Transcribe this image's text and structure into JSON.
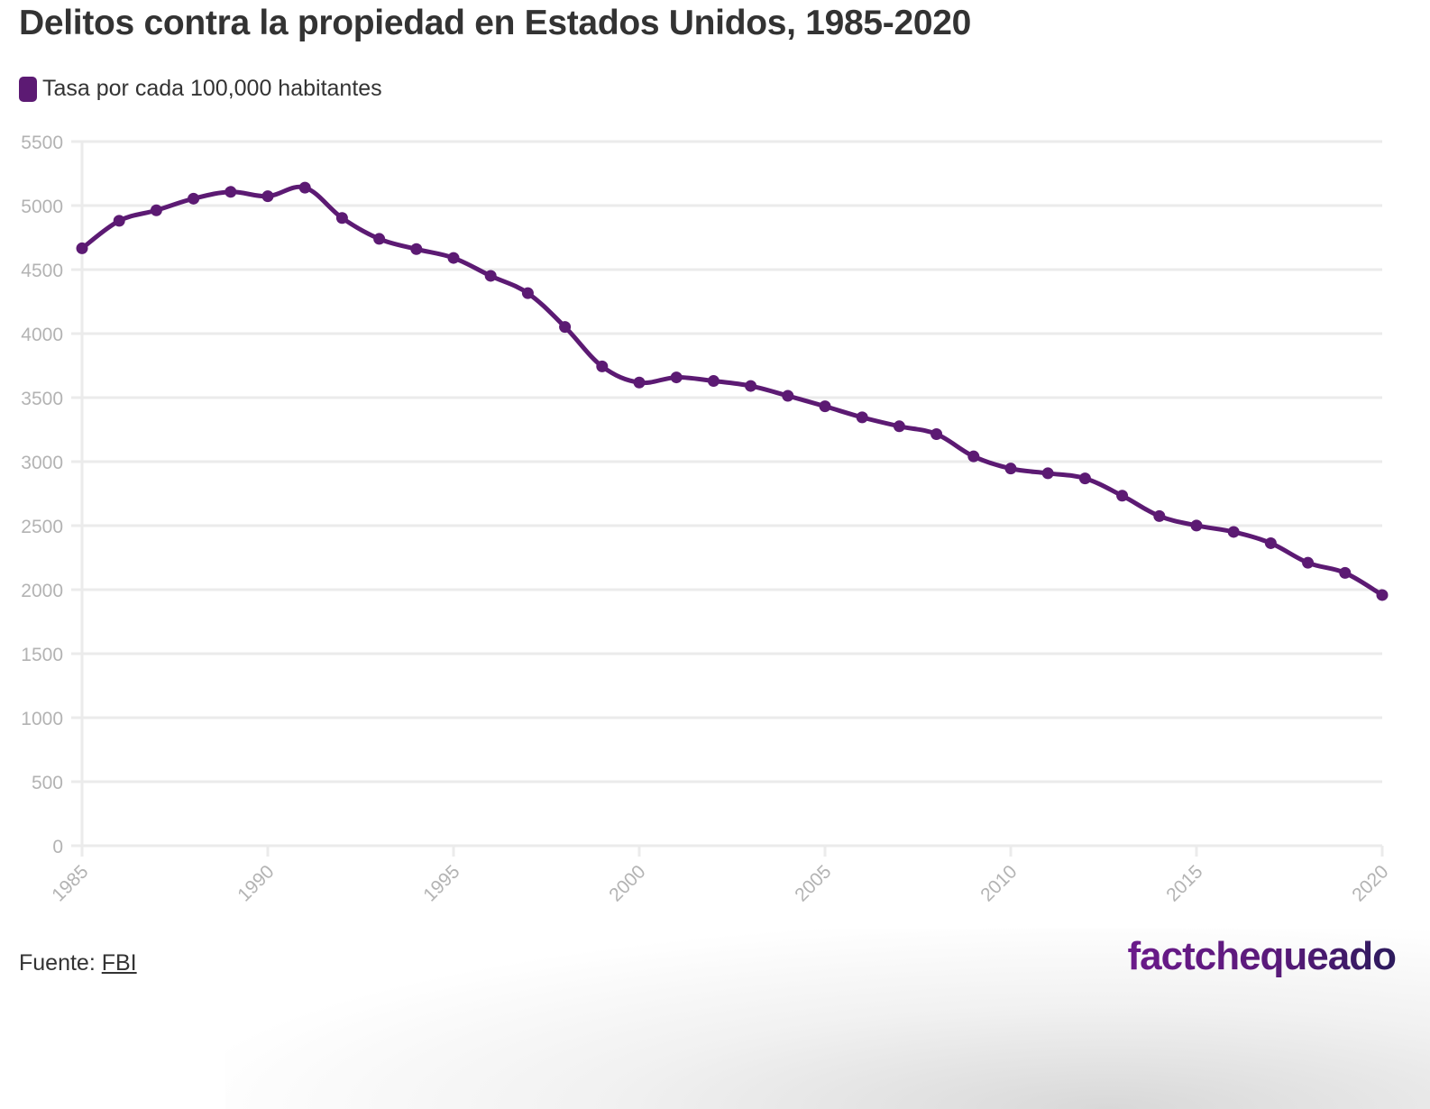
{
  "header": {
    "title": "Delitos contra la propiedad en Estados Unidos, 1985-2020"
  },
  "legend": {
    "label": "Tasa por cada 100,000 habitantes",
    "color": "#5c1a73"
  },
  "footer": {
    "source_prefix": "Fuente:",
    "source_link": "FBI",
    "brand": "factchequeado"
  },
  "chart_data": {
    "type": "line",
    "title": "Delitos contra la propiedad en Estados Unidos, 1985-2020",
    "xlabel": "",
    "ylabel": "",
    "grid": true,
    "legend_position": "top-left",
    "ylim": [
      0,
      5500
    ],
    "xlim": [
      1985,
      2020
    ],
    "y_ticks": [
      0,
      500,
      1000,
      1500,
      2000,
      2500,
      3000,
      3500,
      4000,
      4500,
      5000,
      5500
    ],
    "x_ticks": [
      1985,
      1990,
      1995,
      2000,
      2005,
      2010,
      2015,
      2020
    ],
    "series": [
      {
        "name": "Tasa por cada 100,000 habitantes",
        "color": "#5c1a73",
        "x": [
          1985,
          1986,
          1987,
          1988,
          1989,
          1990,
          1991,
          1992,
          1993,
          1994,
          1995,
          1996,
          1997,
          1998,
          1999,
          2000,
          2001,
          2002,
          2003,
          2004,
          2005,
          2006,
          2007,
          2008,
          2009,
          2010,
          2011,
          2012,
          2013,
          2014,
          2015,
          2016,
          2017,
          2018,
          2019,
          2020
        ],
        "values": [
          4666,
          4881,
          4963,
          5054,
          5107,
          5073,
          5140,
          4903,
          4740,
          4660,
          4591,
          4451,
          4316,
          4052,
          3744,
          3618,
          3658,
          3630,
          3591,
          3514,
          3432,
          3346,
          3276,
          3215,
          3041,
          2946,
          2909,
          2869,
          2734,
          2575,
          2501,
          2451,
          2363,
          2210,
          2131,
          1958
        ]
      }
    ]
  }
}
